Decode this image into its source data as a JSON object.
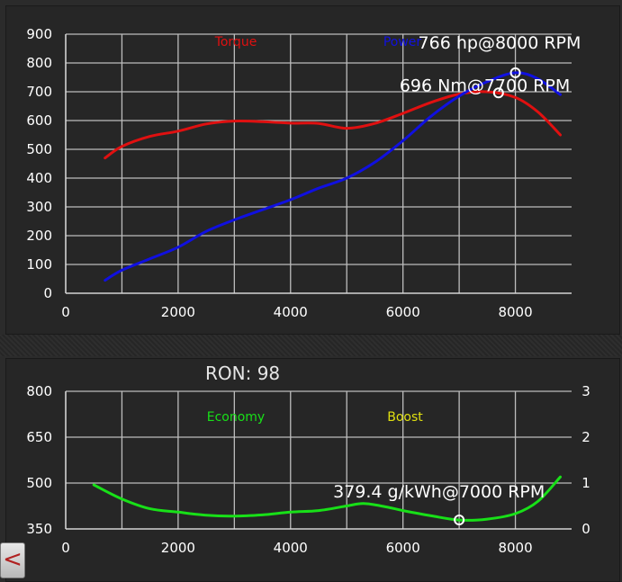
{
  "back_button": {
    "label": "<"
  },
  "ron_label": "RON: 98",
  "chart_data": [
    {
      "type": "line",
      "xlim": [
        0,
        9000
      ],
      "ylim": [
        0,
        900
      ],
      "x_ticks": [
        "0",
        "2000",
        "4000",
        "6000",
        "8000"
      ],
      "y_ticks": [
        "0",
        "100",
        "200",
        "300",
        "400",
        "500",
        "600",
        "700",
        "800",
        "900"
      ],
      "grid": true,
      "legend_position": "top",
      "series": [
        {
          "name": "Torque",
          "color": "#e01010",
          "points": [
            [
              700,
              470
            ],
            [
              1000,
              510
            ],
            [
              1500,
              545
            ],
            [
              2000,
              563
            ],
            [
              2500,
              588
            ],
            [
              3000,
              598
            ],
            [
              3500,
              596
            ],
            [
              4000,
              591
            ],
            [
              4500,
              590
            ],
            [
              5000,
              573
            ],
            [
              5500,
              590
            ],
            [
              6000,
              625
            ],
            [
              6500,
              663
            ],
            [
              7000,
              692
            ],
            [
              7500,
              700
            ],
            [
              8000,
              680
            ],
            [
              8400,
              630
            ],
            [
              8800,
              550
            ]
          ]
        },
        {
          "name": "Power",
          "color": "#1010e0",
          "points": [
            [
              700,
              45
            ],
            [
              1000,
              80
            ],
            [
              1500,
              120
            ],
            [
              2000,
              160
            ],
            [
              2500,
              215
            ],
            [
              3000,
              255
            ],
            [
              3500,
              290
            ],
            [
              4000,
              325
            ],
            [
              4500,
              365
            ],
            [
              5000,
              400
            ],
            [
              5500,
              455
            ],
            [
              6000,
              530
            ],
            [
              6500,
              615
            ],
            [
              7000,
              685
            ],
            [
              7500,
              735
            ],
            [
              8000,
              766
            ],
            [
              8400,
              745
            ],
            [
              8800,
              690
            ]
          ]
        }
      ],
      "annotations": [
        {
          "text": "766 hp@8000 RPM",
          "x": 8000,
          "y": 766,
          "series": "Power"
        },
        {
          "text": "696 Nm@7700 RPM",
          "x": 7700,
          "y": 696,
          "series": "Torque"
        }
      ]
    },
    {
      "type": "line",
      "xlim": [
        0,
        9000
      ],
      "ylim": [
        350,
        800
      ],
      "y2lim": [
        0,
        3
      ],
      "x_ticks": [
        "0",
        "2000",
        "4000",
        "6000",
        "8000"
      ],
      "y_ticks": [
        "350",
        "500",
        "650",
        "800"
      ],
      "y2_ticks": [
        "0",
        "1",
        "2",
        "3"
      ],
      "grid": true,
      "legend_position": "top",
      "series": [
        {
          "name": "Economy",
          "color": "#18e018",
          "points": [
            [
              500,
              494
            ],
            [
              1000,
              448
            ],
            [
              1500,
              416
            ],
            [
              2000,
              405
            ],
            [
              2500,
              395
            ],
            [
              3000,
              392
            ],
            [
              3500,
              396
            ],
            [
              4000,
              405
            ],
            [
              4500,
              410
            ],
            [
              5000,
              425
            ],
            [
              5300,
              433
            ],
            [
              5700,
              422
            ],
            [
              6000,
              410
            ],
            [
              6500,
              393
            ],
            [
              7000,
              379
            ],
            [
              7500,
              382
            ],
            [
              8000,
              400
            ],
            [
              8400,
              440
            ],
            [
              8800,
              520
            ]
          ]
        },
        {
          "name": "Boost",
          "color": "#e0e010",
          "points": []
        }
      ],
      "annotations": [
        {
          "text": "379.4 g/kWh@7000 RPM",
          "x": 7000,
          "y": 379.4,
          "series": "Economy"
        }
      ]
    }
  ]
}
